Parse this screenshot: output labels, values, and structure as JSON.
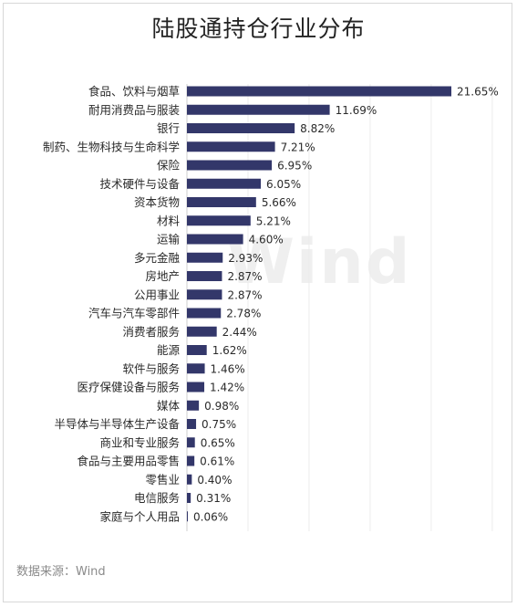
{
  "title": "陆股通持仓行业分布",
  "source": "数据来源：Wind",
  "watermark": "Wind",
  "bar_color": "#33376a",
  "chart_data": {
    "type": "bar",
    "orientation": "horizontal",
    "title": "陆股通持仓行业分布",
    "xlabel": "",
    "ylabel": "",
    "xlim": [
      0,
      25
    ],
    "grid": true,
    "legend": "none",
    "value_format": "percent",
    "categories": [
      "食品、饮料与烟草",
      "耐用消费品与服装",
      "银行",
      "制药、生物科技与生命科学",
      "保险",
      "技术硬件与设备",
      "资本货物",
      "材料",
      "运输",
      "多元金融",
      "房地产",
      "公用事业",
      "汽车与汽车零部件",
      "消费者服务",
      "能源",
      "软件与服务",
      "医疗保健设备与服务",
      "媒体",
      "半导体与半导体生产设备",
      "商业和专业服务",
      "食品与主要用品零售",
      "零售业",
      "电信服务",
      "家庭与个人用品"
    ],
    "values": [
      21.65,
      11.69,
      8.82,
      7.21,
      6.95,
      6.05,
      5.66,
      5.21,
      4.6,
      2.93,
      2.87,
      2.87,
      2.78,
      2.44,
      1.62,
      1.46,
      1.42,
      0.98,
      0.75,
      0.65,
      0.61,
      0.4,
      0.31,
      0.06
    ],
    "labels": [
      "21.65%",
      "11.69%",
      "8.82%",
      "7.21%",
      "6.95%",
      "6.05%",
      "5.66%",
      "5.21%",
      "4.60%",
      "2.93%",
      "2.87%",
      "2.87%",
      "2.78%",
      "2.44%",
      "1.62%",
      "1.46%",
      "1.42%",
      "0.98%",
      "0.75%",
      "0.65%",
      "0.61%",
      "0.40%",
      "0.31%",
      "0.06%"
    ]
  }
}
